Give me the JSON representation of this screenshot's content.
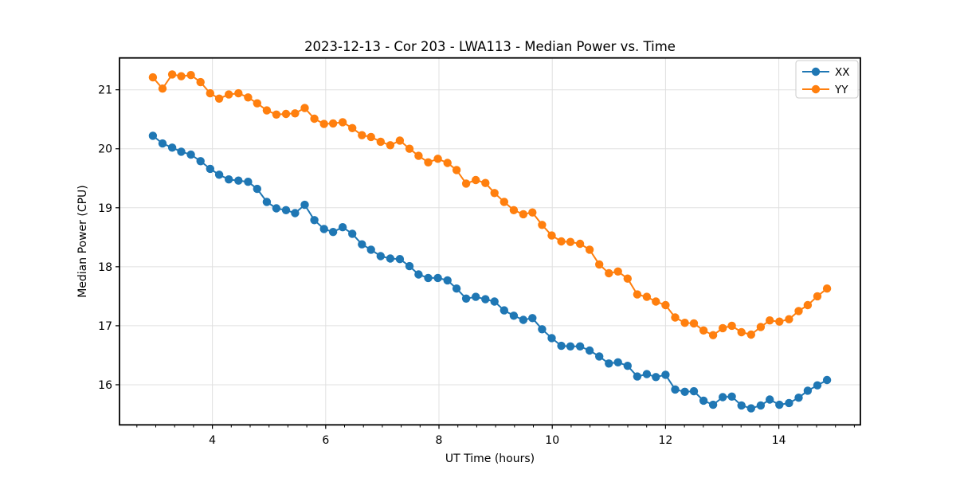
{
  "figure": {
    "background": "#ffffff",
    "grid_color": "#e0e0e0",
    "spine_color": "#000000",
    "tick_color": "#000000"
  },
  "chart_data": {
    "type": "line",
    "title": "2023-12-13 - Cor 203 - LWA113 - Median Power vs. Time",
    "xlabel": "UT Time (hours)",
    "ylabel": "Median Power (CPU)",
    "xlim": [
      2.36,
      15.44
    ],
    "ylim": [
      15.32,
      21.54
    ],
    "xticks": [
      4,
      6,
      8,
      10,
      12,
      14
    ],
    "yticks": [
      16,
      17,
      18,
      19,
      20,
      21
    ],
    "x_minor_tick_step": 0.3333333,
    "grid": true,
    "legend_position": "upper right",
    "marker": "circle",
    "x": [
      2.95,
      3.12,
      3.29,
      3.45,
      3.62,
      3.79,
      3.96,
      4.12,
      4.29,
      4.46,
      4.63,
      4.79,
      4.96,
      5.13,
      5.3,
      5.46,
      5.63,
      5.8,
      5.97,
      6.13,
      6.3,
      6.47,
      6.64,
      6.8,
      6.97,
      7.14,
      7.31,
      7.48,
      7.64,
      7.81,
      7.98,
      8.15,
      8.31,
      8.48,
      8.65,
      8.82,
      8.98,
      9.15,
      9.32,
      9.49,
      9.65,
      9.82,
      9.99,
      10.16,
      10.32,
      10.49,
      10.66,
      10.83,
      11.0,
      11.16,
      11.33,
      11.5,
      11.67,
      11.83,
      12.0,
      12.17,
      12.34,
      12.5,
      12.67,
      12.84,
      13.01,
      13.17,
      13.34,
      13.51,
      13.68,
      13.84,
      14.01,
      14.18,
      14.35,
      14.51,
      14.68,
      14.85
    ],
    "series": [
      {
        "name": "XX",
        "color": "#1f77b4",
        "values": [
          20.22,
          20.09,
          20.02,
          19.95,
          19.9,
          19.79,
          19.66,
          19.56,
          19.48,
          19.46,
          19.44,
          19.32,
          19.1,
          18.99,
          18.96,
          18.91,
          19.05,
          18.79,
          18.64,
          18.59,
          18.67,
          18.56,
          18.38,
          18.29,
          18.18,
          18.14,
          18.13,
          18.01,
          17.87,
          17.81,
          17.81,
          17.77,
          17.63,
          17.46,
          17.49,
          17.45,
          17.41,
          17.26,
          17.17,
          17.1,
          17.13,
          16.94,
          16.79,
          16.66,
          16.65,
          16.65,
          16.58,
          16.48,
          16.36,
          16.38,
          16.32,
          16.14,
          16.18,
          16.13,
          16.17,
          15.92,
          15.88,
          15.89,
          15.73,
          15.66,
          15.79,
          15.8,
          15.65,
          15.6,
          15.65,
          15.75,
          15.66,
          15.69,
          15.78,
          15.9,
          15.99,
          16.08
        ]
      },
      {
        "name": "YY",
        "color": "#ff7f0e",
        "values": [
          21.21,
          21.02,
          21.26,
          21.23,
          21.25,
          21.13,
          20.94,
          20.85,
          20.92,
          20.94,
          20.87,
          20.77,
          20.65,
          20.58,
          20.59,
          20.6,
          20.69,
          20.51,
          20.42,
          20.43,
          20.45,
          20.35,
          20.23,
          20.2,
          20.12,
          20.06,
          20.14,
          20.0,
          19.88,
          19.77,
          19.83,
          19.76,
          19.64,
          19.41,
          19.47,
          19.42,
          19.25,
          19.1,
          18.96,
          18.89,
          18.92,
          18.71,
          18.53,
          18.43,
          18.42,
          18.39,
          18.29,
          18.04,
          17.89,
          17.92,
          17.8,
          17.53,
          17.49,
          17.41,
          17.35,
          17.14,
          17.05,
          17.04,
          16.92,
          16.84,
          16.96,
          17.0,
          16.89,
          16.85,
          16.98,
          17.09,
          17.07,
          17.11,
          17.25,
          17.35,
          17.5,
          17.63
        ]
      }
    ]
  }
}
